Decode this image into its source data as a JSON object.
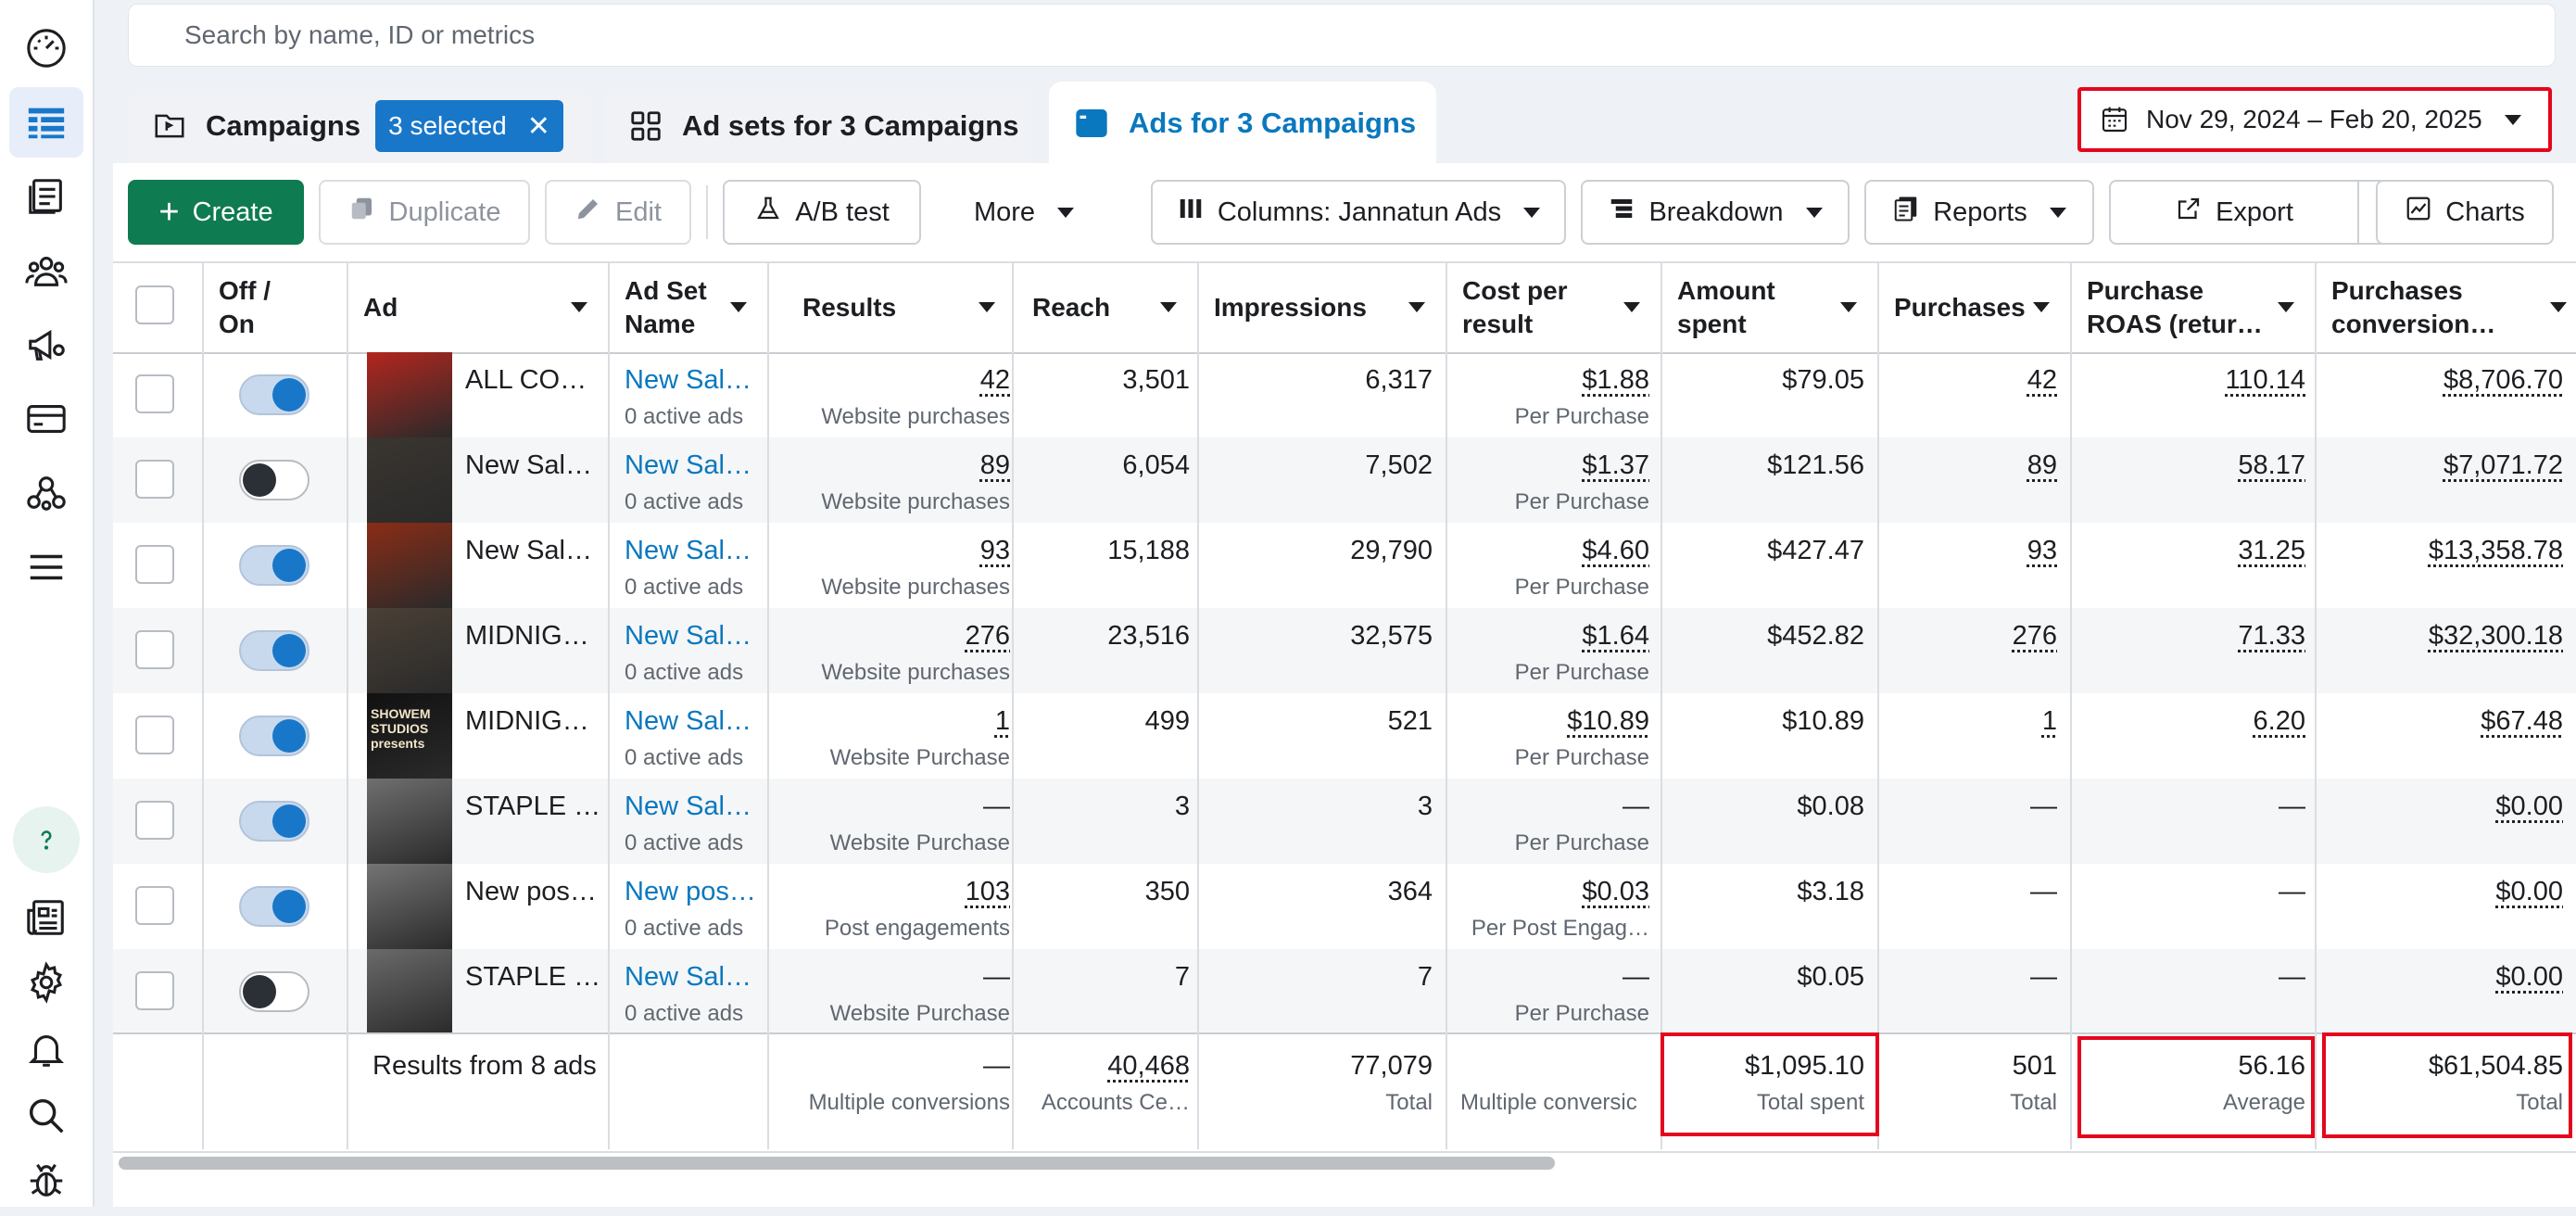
{
  "search": {
    "placeholder": "Search by name, ID or metrics"
  },
  "tabs": {
    "campaigns": "Campaigns",
    "selected_badge": "3 selected",
    "adsets": "Ad sets for 3 Campaigns",
    "ads": "Ads for 3 Campaigns"
  },
  "date_range": "Nov 29, 2024 – Feb 20, 2025",
  "toolbar": {
    "create": "Create",
    "duplicate": "Duplicate",
    "edit": "Edit",
    "ab_test": "A/B test",
    "more": "More",
    "columns": "Columns: Jannatun Ads",
    "breakdown": "Breakdown",
    "reports": "Reports",
    "export": "Export",
    "charts": "Charts"
  },
  "columns": {
    "onoff_1": "Off /",
    "onoff_2": "On",
    "ad": "Ad",
    "adset_1": "Ad Set",
    "adset_2": "Name",
    "results": "Results",
    "reach": "Reach",
    "impressions": "Impressions",
    "cpr_1": "Cost per",
    "cpr_2": "result",
    "spent_1": "Amount",
    "spent_2": "spent",
    "purchases": "Purchases",
    "roas_1": "Purchase",
    "roas_2": "ROAS (retur…",
    "conv_1": "Purchases",
    "conv_2": "conversion…"
  },
  "rows": [
    {
      "toggle": "on",
      "ad": "ALL CO…",
      "adset": "New Sal…",
      "adset_sub": "0 active ads",
      "results": "42",
      "results_sub": "Website purchases",
      "reach": "3,501",
      "impressions": "6,317",
      "cpr": "$1.88",
      "cpr_sub": "Per Purchase",
      "spent": "$79.05",
      "purchases": "42",
      "roas": "110.14",
      "conv": "$8,706.70",
      "thumb": "#b3261e"
    },
    {
      "toggle": "off",
      "ad": "New Sal…",
      "adset": "New Sal…",
      "adset_sub": "0 active ads",
      "results": "89",
      "results_sub": "Website purchases",
      "reach": "6,054",
      "impressions": "7,502",
      "cpr": "$1.37",
      "cpr_sub": "Per Purchase",
      "spent": "$121.56",
      "purchases": "89",
      "roas": "58.17",
      "conv": "$7,071.72",
      "thumb": "#3a3530"
    },
    {
      "toggle": "on",
      "ad": "New Sal…",
      "adset": "New Sal…",
      "adset_sub": "0 active ads",
      "results": "93",
      "results_sub": "Website purchases",
      "reach": "15,188",
      "impressions": "29,790",
      "cpr": "$4.60",
      "cpr_sub": "Per Purchase",
      "spent": "$427.47",
      "purchases": "93",
      "roas": "31.25",
      "conv": "$13,358.78",
      "thumb": "#8a2c16"
    },
    {
      "toggle": "on",
      "ad": "MIDNIG…",
      "adset": "New Sal…",
      "adset_sub": "0 active ads",
      "results": "276",
      "results_sub": "Website purchases",
      "reach": "23,516",
      "impressions": "32,575",
      "cpr": "$1.64",
      "cpr_sub": "Per Purchase",
      "spent": "$452.82",
      "purchases": "276",
      "roas": "71.33",
      "conv": "$32,300.18",
      "thumb": "#4a4036"
    },
    {
      "toggle": "on",
      "ad": "MIDNIG…",
      "adset": "New Sal…",
      "adset_sub": "0 active ads",
      "results": "1",
      "results_sub": "Website Purchase",
      "reach": "499",
      "impressions": "521",
      "cpr": "$10.89",
      "cpr_sub": "Per Purchase",
      "spent": "$10.89",
      "purchases": "1",
      "roas": "6.20",
      "conv": "$67.48",
      "thumb": "#111111",
      "thumb_text": "SHOWEM STUDIOS presents"
    },
    {
      "toggle": "on",
      "ad": "STAPLE …",
      "adset": "New Sal…",
      "adset_sub": "0 active ads",
      "results": "—",
      "results_sub": "Website Purchase",
      "reach": "3",
      "impressions": "3",
      "cpr": "—",
      "cpr_sub": "Per Purchase",
      "spent": "$0.08",
      "purchases": "—",
      "roas": "—",
      "conv": "$0.00",
      "thumb": "#6f6f6f"
    },
    {
      "toggle": "on",
      "ad": "New pos…",
      "adset": "New pos…",
      "adset_sub": "0 active ads",
      "results": "103",
      "results_sub": "Post engagements",
      "reach": "350",
      "impressions": "364",
      "cpr": "$0.03",
      "cpr_sub": "Per Post Engag…",
      "spent": "$3.18",
      "purchases": "—",
      "roas": "—",
      "conv": "$0.00",
      "thumb": "#747474"
    },
    {
      "toggle": "off",
      "ad": "STAPLE …",
      "adset": "New Sal…",
      "adset_sub": "0 active ads",
      "results": "—",
      "results_sub": "Website Purchase",
      "reach": "7",
      "impressions": "7",
      "cpr": "—",
      "cpr_sub": "Per Purchase",
      "spent": "$0.05",
      "purchases": "—",
      "roas": "—",
      "conv": "$0.00",
      "thumb": "#6a6a6a"
    }
  ],
  "totals": {
    "label": "Results from 8 ads",
    "results": "—",
    "results_sub": "Multiple conversions",
    "reach": "40,468",
    "reach_sub": "Accounts Ce…",
    "impressions": "77,079",
    "impressions_sub": "Total",
    "cpr_sub": "Multiple conversic",
    "spent": "$1,095.10",
    "spent_sub": "Total spent",
    "purchases": "501",
    "purchases_sub": "Total",
    "roas": "56.16",
    "roas_sub": "Average",
    "conv": "$61,504.85",
    "conv_sub": "Total"
  },
  "colors": {
    "accent": "#1877c9",
    "create_green": "#0f7b50",
    "highlight_red": "#e4061d"
  }
}
